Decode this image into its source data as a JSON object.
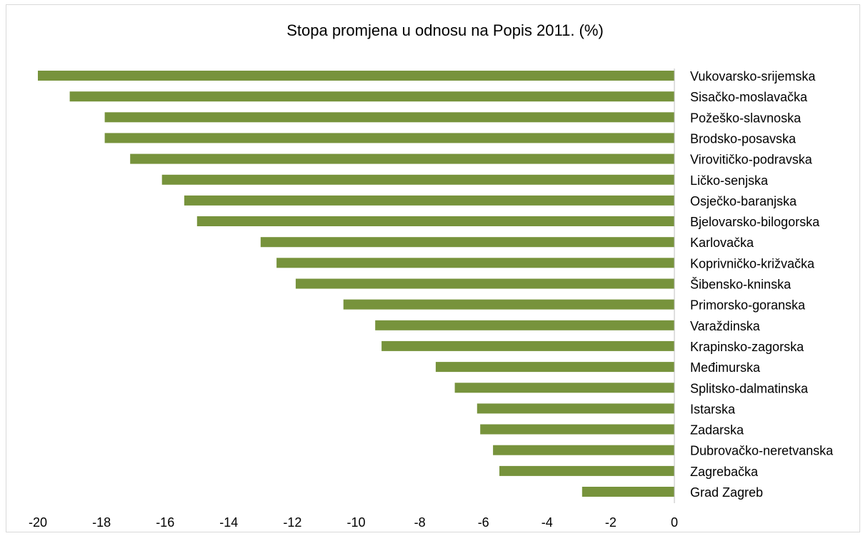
{
  "chart_data": {
    "type": "bar",
    "orientation": "horizontal",
    "title": "Stopa promjena u odnosu na Popis 2011. (%)",
    "xlabel": "",
    "ylabel": "",
    "categories": [
      "Vukovarsko-srijemska",
      "Sisačko-moslavačka",
      "Požeško-slavnoska",
      "Brodsko-posavska",
      "Virovitičko-podravska",
      "Ličko-senjska",
      "Osječko-baranjska",
      "Bjelovarsko-bilogorska",
      "Karlovačka",
      "Koprivničko-križvačka",
      "Šibensko-kninska",
      "Primorsko-goranska",
      "Varaždinska",
      "Krapinsko-zagorska",
      "Međimurska",
      "Splitsko-dalmatinska",
      "Istarska",
      "Zadarska",
      "Dubrovačko-neretvanska",
      "Zagrebačka",
      "Grad Zagreb"
    ],
    "values": [
      -20.0,
      -19.0,
      -17.9,
      -17.9,
      -17.1,
      -16.1,
      -15.4,
      -15.0,
      -13.0,
      -12.5,
      -11.9,
      -10.4,
      -9.4,
      -9.2,
      -7.5,
      -6.9,
      -6.2,
      -6.1,
      -5.7,
      -5.5,
      -2.9
    ],
    "xlim": [
      -20,
      0
    ],
    "xticks": [
      "-20",
      "-18",
      "-16",
      "-14",
      "-12",
      "-10",
      "-8",
      "-6",
      "-4",
      "-2",
      "0"
    ],
    "bar_color": "#77933c",
    "grid": false,
    "legend": "none"
  }
}
